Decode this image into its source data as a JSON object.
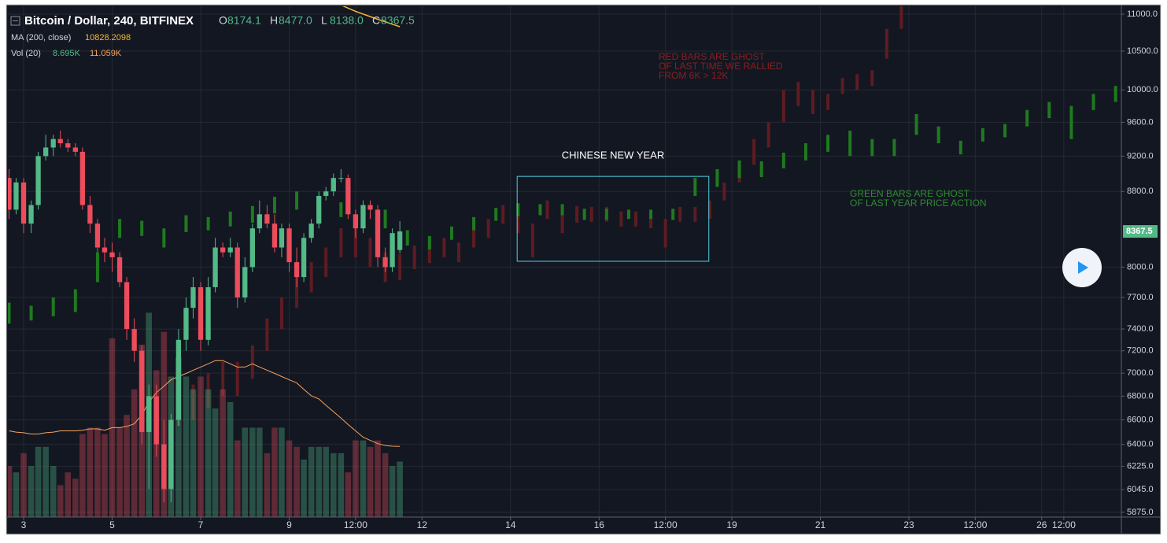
{
  "chart_data": {
    "type": "candlestick",
    "title": "Bitcoin / Dollar, 240, BITFINEX",
    "ohlc_legend": [
      {
        "label": "O",
        "value": "8174.1"
      },
      {
        "label": "H",
        "value": "8477.0"
      },
      {
        "label": "L",
        "value": "8138.0"
      },
      {
        "label": "C",
        "value": "8367.5"
      }
    ],
    "ma_legend": {
      "label": "MA (200, close)",
      "value": "10828.2098"
    },
    "vol_legend": {
      "label": "Vol (20)",
      "value": "8.695K",
      "ma_value": "11.059K"
    },
    "log_scale": true,
    "grid": true,
    "up_color": "#53b987",
    "down_color": "#eb4d5c",
    "x": [
      2.67,
      2.83,
      3,
      3.17,
      3.33,
      3.5,
      3.67,
      3.83,
      4,
      4.17,
      4.33,
      4.5,
      4.67,
      4.83,
      5,
      5.17,
      5.33,
      5.5,
      5.67,
      5.83,
      6,
      6.17,
      6.33,
      6.5,
      6.67,
      6.83,
      7,
      7.17,
      7.33,
      7.5,
      7.67,
      7.83,
      8,
      8.17,
      8.33,
      8.5,
      8.67,
      8.83,
      9,
      9.17,
      9.33,
      9.5,
      9.67,
      9.83,
      10,
      10.17,
      10.33,
      10.5,
      10.67,
      10.83,
      11,
      11.17,
      11.33,
      11.5
    ],
    "open": [
      8950,
      8600,
      8900,
      8450,
      8650,
      9200,
      9300,
      9400,
      9350,
      9300,
      9250,
      8650,
      8450,
      8200,
      8150,
      8100,
      7850,
      7400,
      7200,
      6500,
      6800,
      6400,
      6050,
      6600,
      7300,
      7600,
      7800,
      7300,
      7800,
      8200,
      8150,
      8200,
      7700,
      8000,
      8400,
      8550,
      8450,
      8200,
      8400,
      8050,
      7900,
      8300,
      8450,
      8750,
      8800,
      8950,
      8950,
      8550,
      8400,
      8650,
      8600,
      8100,
      8000,
      8174.1
    ],
    "high": [
      9050,
      8950,
      8950,
      8700,
      9250,
      9450,
      9450,
      9500,
      9400,
      9350,
      9300,
      8750,
      8500,
      8300,
      8250,
      8150,
      7900,
      7500,
      7250,
      6900,
      6900,
      6600,
      6650,
      7400,
      7700,
      7900,
      7850,
      7900,
      8300,
      8250,
      8300,
      8250,
      8100,
      8450,
      8700,
      8650,
      8550,
      8450,
      8450,
      8200,
      8350,
      8500,
      8800,
      8850,
      9000,
      9050,
      8990,
      8600,
      8700,
      8700,
      8650,
      8200,
      8400,
      8477
    ],
    "low": [
      8500,
      8550,
      8350,
      8350,
      8600,
      9150,
      9200,
      9300,
      9250,
      9200,
      8600,
      8350,
      8150,
      8050,
      7950,
      7800,
      7300,
      7100,
      6400,
      6050,
      6300,
      5950,
      5950,
      6550,
      7200,
      7500,
      7200,
      7250,
      7750,
      8100,
      8100,
      7600,
      7650,
      7950,
      8350,
      8400,
      8150,
      8100,
      7950,
      7800,
      7850,
      8250,
      8400,
      8700,
      8750,
      8900,
      8500,
      8300,
      8350,
      8500,
      8000,
      7950,
      7950,
      8138
    ],
    "close": [
      8600,
      8900,
      8450,
      8650,
      9200,
      9300,
      9400,
      9350,
      9300,
      9250,
      8650,
      8450,
      8200,
      8150,
      8100,
      7850,
      7400,
      7200,
      6500,
      6800,
      6400,
      6050,
      6600,
      7300,
      7600,
      7800,
      7300,
      7800,
      8200,
      8150,
      8200,
      7700,
      8000,
      8400,
      8550,
      8450,
      8200,
      8400,
      8050,
      7900,
      8300,
      8450,
      8750,
      8800,
      8950,
      8950,
      8550,
      8400,
      8650,
      8600,
      8100,
      8000,
      8350,
      8367.5
    ],
    "volume": {
      "ylim": [
        0,
        40
      ],
      "values": [
        8,
        7,
        10,
        8,
        11,
        11,
        8,
        5,
        7,
        6,
        13,
        14,
        14,
        13,
        28,
        14,
        16,
        20,
        27,
        32,
        23,
        29,
        22,
        25,
        22,
        20,
        22,
        20,
        17,
        20,
        18,
        12,
        14,
        14,
        14,
        10,
        14,
        14,
        12,
        11,
        9,
        11,
        11,
        11,
        10,
        10,
        7,
        12,
        12,
        11,
        12,
        10,
        8,
        8.695
      ],
      "ma": [
        13.5,
        13.3,
        13.2,
        13,
        13,
        13.2,
        13.3,
        13.5,
        13.5,
        13.5,
        13.6,
        13.8,
        13.8,
        13.6,
        14,
        14,
        14.2,
        14.6,
        16,
        18,
        19.5,
        20.5,
        21.5,
        22,
        22.5,
        23,
        23.5,
        24,
        24.5,
        24.5,
        24,
        23.5,
        23.5,
        24,
        23.5,
        23,
        22.5,
        22,
        21.5,
        21,
        20,
        19,
        18.5,
        17.5,
        16.5,
        15.5,
        14.5,
        13.5,
        12.5,
        12,
        11.5,
        11.2,
        11.1,
        11.059
      ],
      "ma_color": "#f7a35c"
    },
    "ma": {
      "x": [
        9.9,
        10.5,
        11,
        11.5
      ],
      "values": [
        11200,
        11040,
        10930,
        10828.2098
      ],
      "color": "#f7b733"
    },
    "ghost_red": {
      "color": "#5e1c22",
      "x": [
        6.5,
        6.83,
        7.17,
        7.5,
        7.83,
        8.17,
        8.5,
        8.83,
        9.17,
        9.5,
        9.83,
        10.17,
        10.5,
        10.83,
        11.17,
        11.5,
        11.83,
        12.17,
        12.5,
        12.83,
        13.17,
        13.5,
        13.83,
        14.17,
        14.5,
        14.83,
        15.17,
        15.5,
        15.83,
        16.17,
        16.5,
        16.83,
        17.17,
        17.5,
        17.83,
        18.17,
        18.5,
        18.83,
        19.17,
        19.5,
        19.83,
        20.17,
        20.5,
        20.83,
        21.17,
        21.5,
        21.83,
        22.17,
        22.5,
        22.83
      ],
      "low": [
        6550,
        6600,
        6700,
        6800,
        6800,
        6950,
        7200,
        7400,
        7600,
        7750,
        7900,
        8100,
        8100,
        8000,
        7850,
        7870,
        7980,
        8040,
        8100,
        8050,
        8200,
        8300,
        8450,
        8350,
        8100,
        8500,
        8350,
        8460,
        8470,
        8470,
        8420,
        8420,
        8400,
        8200,
        8470,
        8470,
        8500,
        8700,
        8900,
        9100,
        9300,
        9600,
        9800,
        9700,
        9750,
        9950,
        10000,
        10050,
        10400,
        10800
      ],
      "high": [
        6850,
        6900,
        7000,
        7100,
        7100,
        7250,
        7500,
        7700,
        7900,
        8050,
        8200,
        8400,
        8400,
        8300,
        8150,
        8130,
        8220,
        8260,
        8300,
        8250,
        8400,
        8500,
        8650,
        8550,
        8450,
        8700,
        8550,
        8640,
        8630,
        8630,
        8580,
        8580,
        8600,
        8500,
        8630,
        8630,
        8700,
        8900,
        9100,
        9400,
        9600,
        10000,
        10100,
        10000,
        9950,
        10150,
        10200,
        10250,
        10800,
        11300
      ]
    },
    "ghost_green": {
      "color": "#1f7a1f",
      "x": [
        2.67,
        3.17,
        3.67,
        4.17,
        4.67,
        5.17,
        5.67,
        6.17,
        6.67,
        7.17,
        7.67,
        8.17,
        8.67,
        9.17,
        9.67,
        10.17,
        10.67,
        11.17,
        11.67,
        12.17,
        12.67,
        13.17,
        13.67,
        14.17,
        14.67,
        15.17,
        15.67,
        16.17,
        16.67,
        17.17,
        17.67,
        18.17,
        18.67,
        19.17,
        19.67,
        20.17,
        20.67,
        21.17,
        21.67,
        22.17,
        22.67,
        23.17,
        23.67,
        24.17,
        24.67,
        25.17,
        25.67,
        26.17,
        26.67,
        27.17,
        27.67
      ],
      "low": [
        7450,
        7480,
        7520,
        7560,
        7850,
        8300,
        8320,
        8200,
        8360,
        8380,
        8420,
        8460,
        8560,
        8600,
        8560,
        8520,
        8480,
        8400,
        8220,
        8180,
        8280,
        8380,
        8480,
        8530,
        8540,
        8540,
        8490,
        8490,
        8500,
        8500,
        8490,
        8750,
        8850,
        8950,
        8960,
        9060,
        9150,
        9250,
        9200,
        9200,
        9200,
        9450,
        9350,
        9220,
        9370,
        9420,
        9550,
        9650,
        9400,
        9750,
        9850
      ],
      "high": [
        7650,
        7620,
        7700,
        7780,
        8150,
        8500,
        8480,
        8400,
        8540,
        8520,
        8580,
        8640,
        8740,
        8800,
        8740,
        8680,
        8620,
        8600,
        8380,
        8320,
        8420,
        8520,
        8620,
        8670,
        8660,
        8660,
        8610,
        8610,
        8600,
        8600,
        8610,
        8950,
        9050,
        9150,
        9140,
        9240,
        9350,
        9450,
        9500,
        9400,
        9400,
        9700,
        9550,
        9380,
        9530,
        9580,
        9750,
        9850,
        9800,
        9950,
        10050
      ]
    },
    "annotations": {
      "chinese_new_year": {
        "text": "CHINESE NEW YEAR",
        "x": [
          14.15,
          18.48
        ],
        "y": [
          8059,
          8968
        ]
      },
      "red_note": [
        "RED BARS ARE GHOST",
        "OF LAST TIME WE RALLIED",
        "FROM 6K > 12K"
      ],
      "green_note": [
        "GREEN BARS ARE GHOST",
        "OF LAST YEAR PRICE ACTION"
      ]
    },
    "xlim": [
      2.644,
      27.8
    ],
    "xticks": [
      3,
      5,
      7,
      9,
      {
        "value": 10.5,
        "label": "12:00"
      },
      12,
      14,
      16,
      {
        "value": 17.5,
        "label": "12:00"
      },
      19,
      21,
      23,
      {
        "value": 24.5,
        "label": "12:00"
      },
      26,
      {
        "value": 26.5,
        "label": "12:00"
      }
    ],
    "ylim": [
      5840,
      11110
    ],
    "yticks": [
      {
        "value": 11000,
        "label": "11000.0"
      },
      {
        "value": 10500,
        "label": "10500.0"
      },
      {
        "value": 10000,
        "label": "10000.0"
      },
      {
        "value": 9600,
        "label": "9600.0"
      },
      {
        "value": 9200,
        "label": "9200.0"
      },
      {
        "value": 8800,
        "label": "8800.0"
      },
      {
        "value": 8000,
        "label": "8000.0"
      },
      {
        "value": 7700,
        "label": "7700.0"
      },
      {
        "value": 7400,
        "label": "7400.0"
      },
      {
        "value": 7200,
        "label": "7200.0"
      },
      {
        "value": 7000,
        "label": "7000.0"
      },
      {
        "value": 6800,
        "label": "6800.0"
      },
      {
        "value": 6600,
        "label": "6600.0"
      },
      {
        "value": 6400,
        "label": "6400.0"
      },
      {
        "value": 6225,
        "label": "6225.0"
      },
      {
        "value": 6045,
        "label": "6045.0"
      },
      {
        "value": 5875,
        "label": "5875.0"
      }
    ]
  }
}
